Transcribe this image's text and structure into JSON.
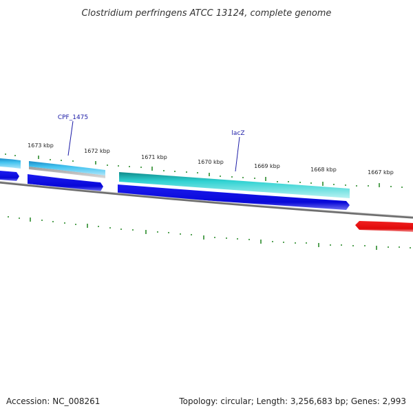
{
  "title": "Clostridium perfringens ATCC 13124, complete genome",
  "footer": {
    "accession": "Accession: NC_008261",
    "summary": "Topology: circular; Length: 3,256,683 bp; Genes: 2,993"
  },
  "ticks": [
    {
      "label": "1673 kbp"
    },
    {
      "label": "1672 kbp"
    },
    {
      "label": "1671 kbp"
    },
    {
      "label": "1670 kbp"
    },
    {
      "label": "1669 kbp"
    },
    {
      "label": "1668 kbp"
    },
    {
      "label": "1667 kbp"
    }
  ],
  "genes": [
    {
      "label": "CPF_1475"
    },
    {
      "label": "lacZ"
    }
  ],
  "colors": {
    "cds_dark": "#1010e0",
    "cds_light": "#2ab4e8",
    "cds_teal": "#28c8c8",
    "cds_red": "#e81010",
    "backbone": "#777777",
    "tick": "#2a8a2a",
    "label_line": "#1a1aa6"
  }
}
